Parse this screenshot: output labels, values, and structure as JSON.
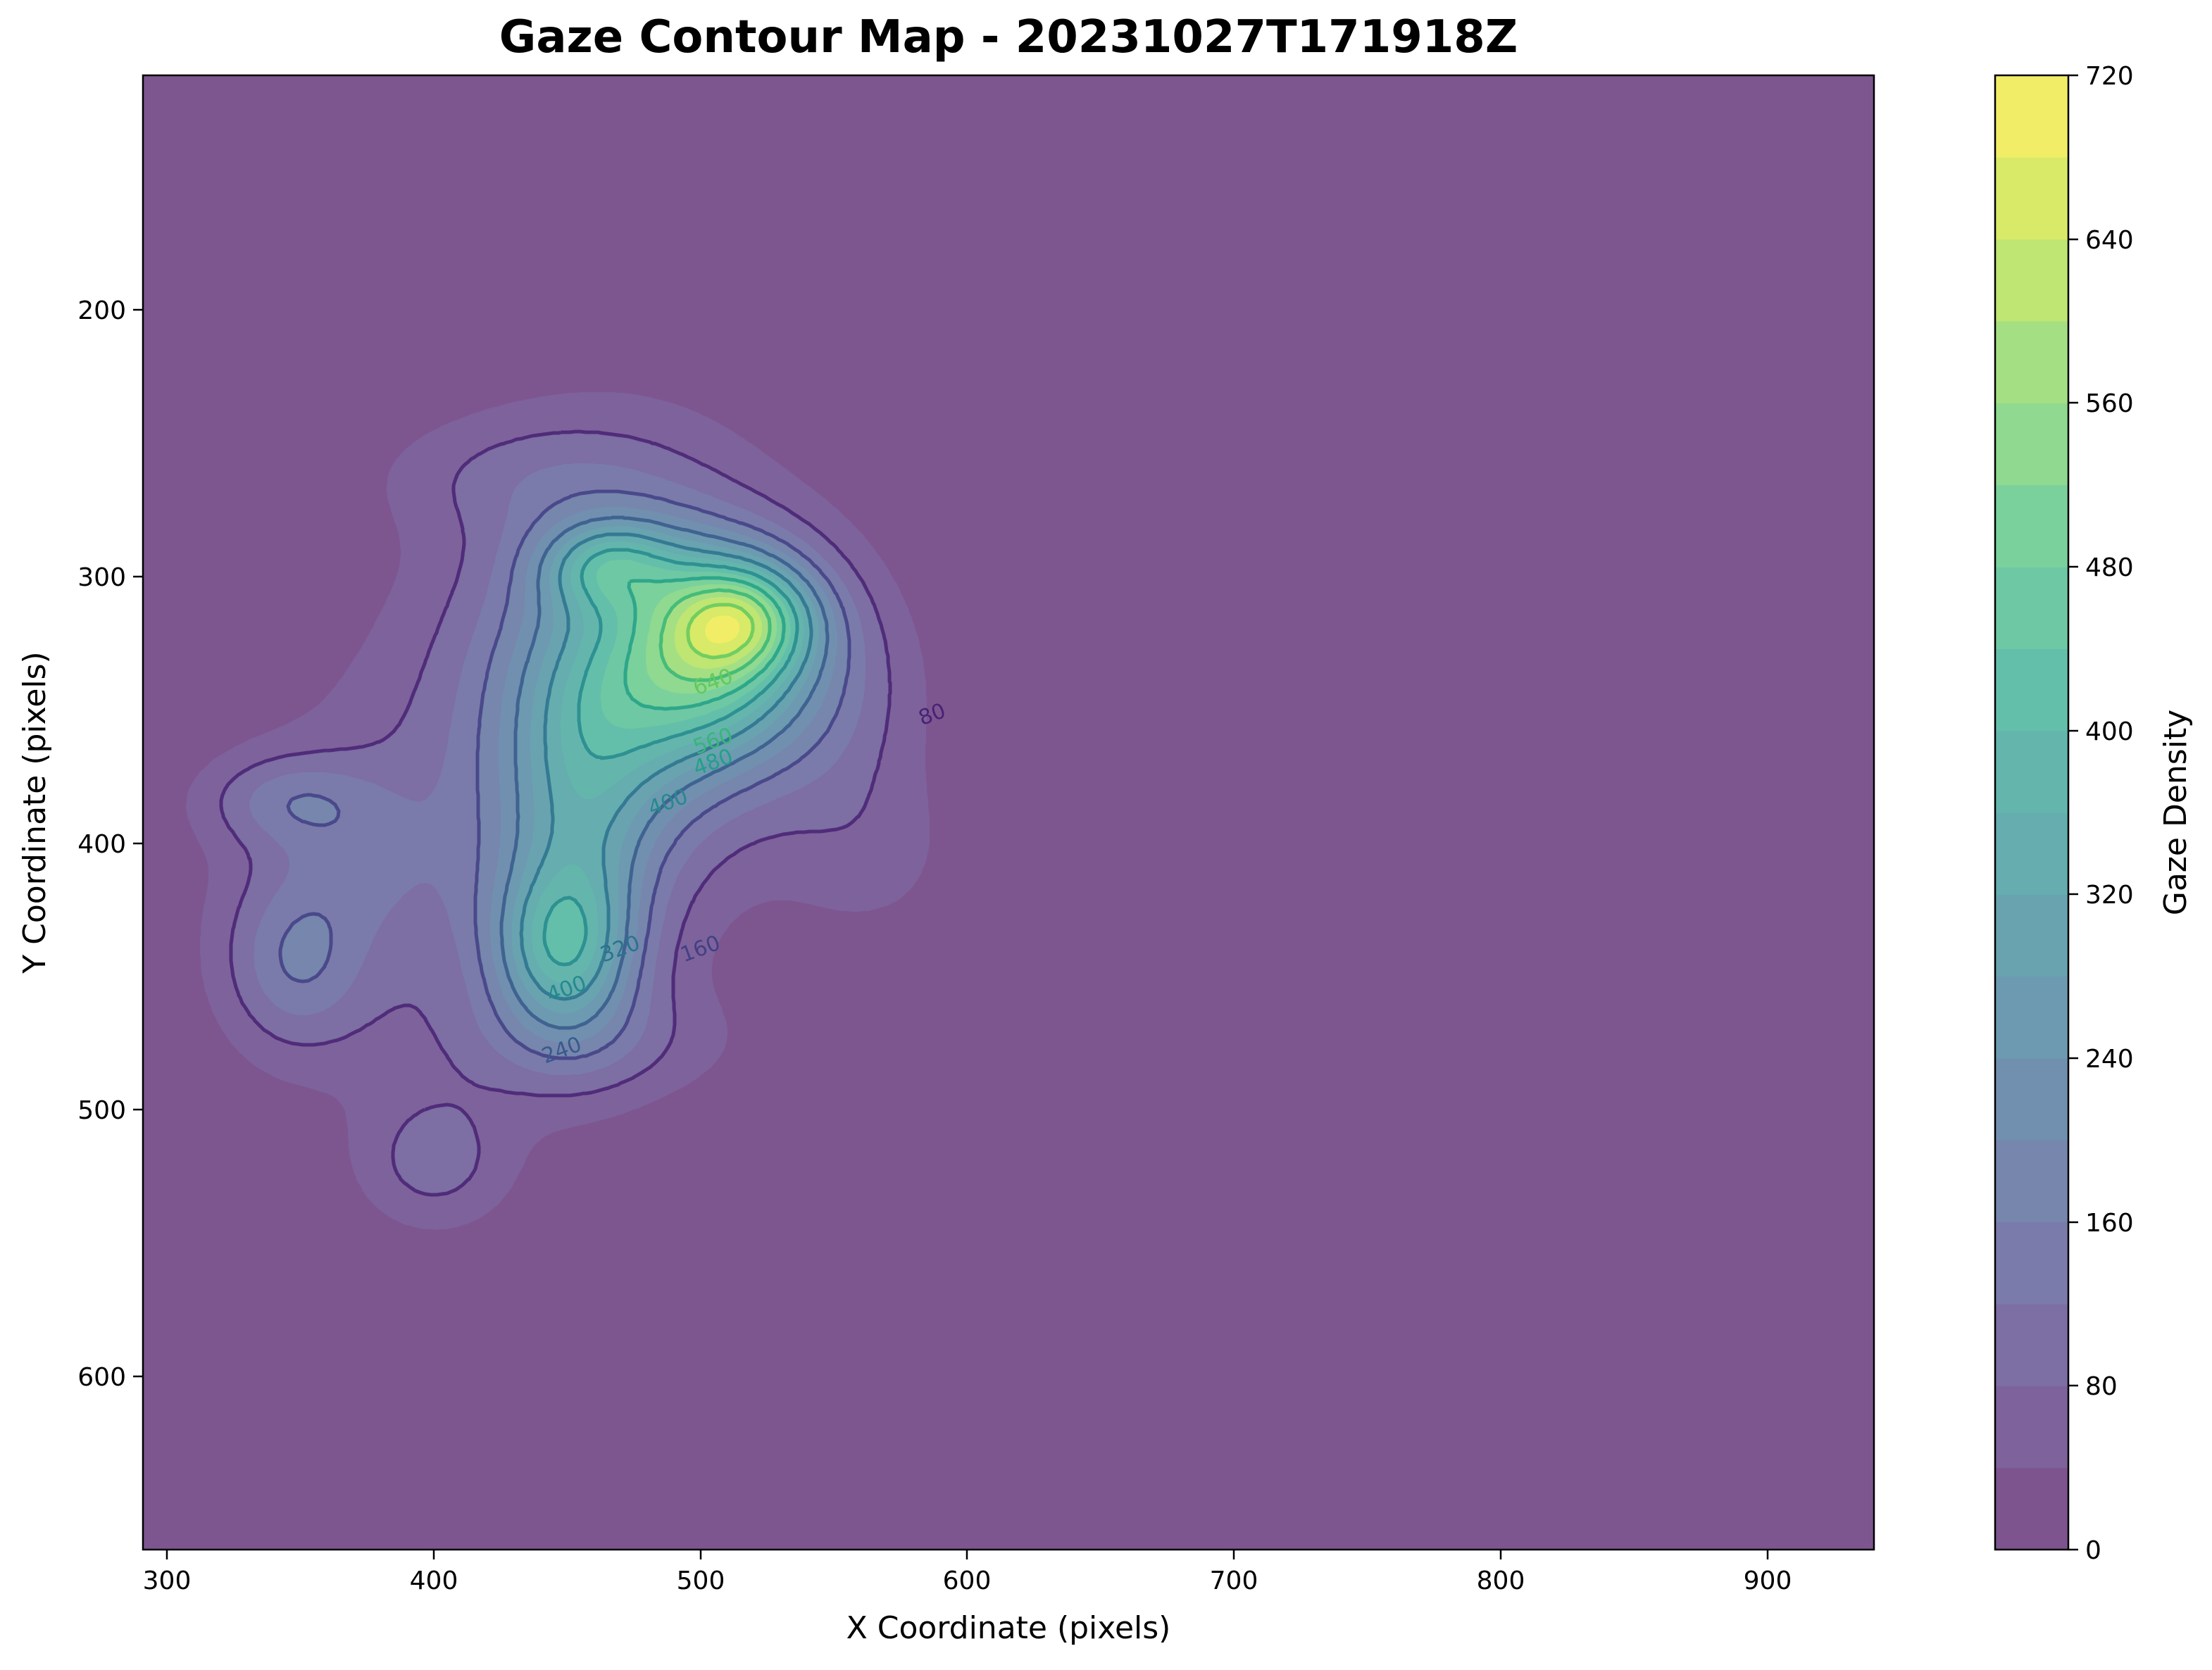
{
  "chart_data": {
    "type": "heatmap",
    "subtype": "filled-contour",
    "title": "Gaze Contour Map - 20231027T171918Z",
    "xlabel": "X Coordinate (pixels)",
    "ylabel": "Y Coordinate (pixels)",
    "colorbar_label": "Gaze Density",
    "colormap": "viridis",
    "alpha": 0.7,
    "xlim": [
      291,
      940
    ],
    "ylim": [
      665,
      112
    ],
    "y_inverted": true,
    "xticks": [
      300,
      400,
      500,
      600,
      700,
      800,
      900
    ],
    "yticks": [
      200,
      300,
      400,
      500,
      600
    ],
    "colorbar_range": [
      0,
      720
    ],
    "colorbar_ticks": [
      0,
      80,
      160,
      240,
      320,
      400,
      480,
      560,
      640,
      720
    ],
    "fill_levels": [
      0,
      40,
      80,
      120,
      160,
      200,
      240,
      280,
      320,
      360,
      400,
      440,
      480,
      520,
      560,
      600,
      640,
      680,
      720
    ],
    "line_levels": [
      80,
      160,
      240,
      320,
      400,
      480,
      560,
      640
    ],
    "grid": false,
    "background_color": "#7d5690",
    "peaks": [
      {
        "x": 515,
        "y": 315,
        "value": 700
      },
      {
        "x": 448,
        "y": 440,
        "value": 430
      },
      {
        "x": 465,
        "y": 295,
        "value": 450
      },
      {
        "x": 348,
        "y": 445,
        "value": 130
      },
      {
        "x": 345,
        "y": 384,
        "value": 110
      },
      {
        "x": 400,
        "y": 520,
        "value": 90
      }
    ],
    "contour_labels": [
      {
        "text": "80",
        "x": 587,
        "y": 352
      },
      {
        "text": "160",
        "x": 500,
        "y": 440
      },
      {
        "text": "240",
        "x": 448,
        "y": 478
      },
      {
        "text": "320",
        "x": 470,
        "y": 440
      },
      {
        "text": "400",
        "x": 450,
        "y": 455
      },
      {
        "text": "400",
        "x": 488,
        "y": 385
      },
      {
        "text": "480",
        "x": 505,
        "y": 370
      },
      {
        "text": "560",
        "x": 505,
        "y": 362
      },
      {
        "text": "640",
        "x": 505,
        "y": 340
      }
    ]
  }
}
